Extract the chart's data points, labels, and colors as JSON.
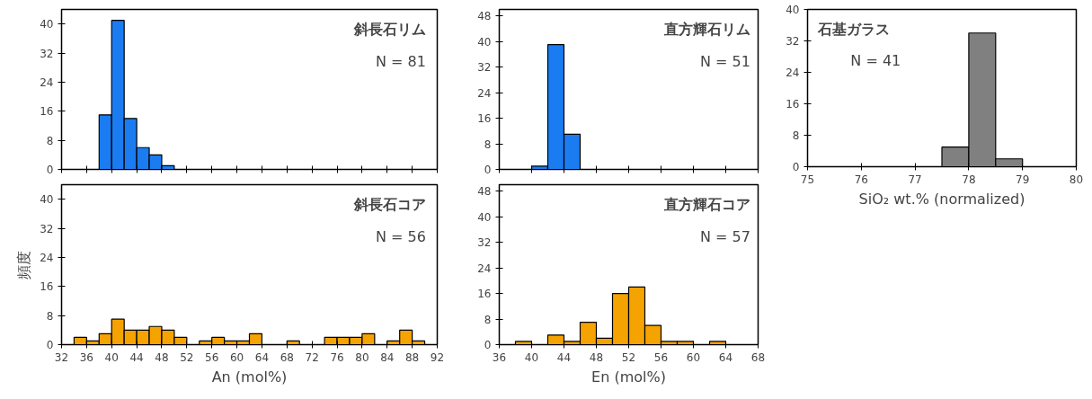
{
  "chart_data": [
    {
      "type": "histogram",
      "title": "斜長石リム",
      "annotations": [
        "N = 81"
      ],
      "bins": [
        38,
        40,
        42,
        44,
        46,
        48,
        50
      ],
      "values": [
        15,
        41,
        14,
        6,
        4,
        1
      ],
      "color": "#1a7cf0",
      "xlim": [
        32,
        92
      ],
      "ylim": [
        0,
        44
      ],
      "xticks": [
        32,
        36,
        40,
        44,
        48,
        52,
        56,
        60,
        64,
        68,
        72,
        76,
        80,
        84,
        88,
        92
      ],
      "yticks": [
        0,
        8,
        16,
        24,
        32,
        40
      ],
      "tick_labels": "y"
    },
    {
      "type": "histogram",
      "title": "直方輝石リム",
      "annotations": [
        "N = 51"
      ],
      "bins": [
        40,
        42,
        44,
        46
      ],
      "values": [
        1,
        39,
        11
      ],
      "color": "#1a7cf0",
      "xlim": [
        36,
        68
      ],
      "ylim": [
        0,
        50
      ],
      "xticks": [
        36,
        40,
        44,
        48,
        52,
        56,
        60,
        64,
        68
      ],
      "yticks": [
        0,
        8,
        16,
        24,
        32,
        40,
        48
      ],
      "tick_labels": "y"
    },
    {
      "type": "histogram",
      "title": "石基ガラス",
      "annotations": [
        "N = 41"
      ],
      "xlabel": "SiO₂ wt.% (normalized)",
      "bins": [
        77.5,
        78,
        78.5,
        79
      ],
      "values": [
        5,
        34,
        2
      ],
      "color": "#808080",
      "xlim": [
        75,
        80
      ],
      "ylim": [
        0,
        40
      ],
      "xticks": [
        75,
        76,
        77,
        78,
        79,
        80
      ],
      "yticks": [
        0,
        8,
        16,
        24,
        32,
        40
      ]
    },
    {
      "type": "histogram",
      "title": "斜長石コア",
      "annotations": [
        "N = 56"
      ],
      "xlabel": "An (mol%)",
      "ylabel": "頻度",
      "bins": [
        34,
        36,
        38,
        40,
        42,
        44,
        46,
        48,
        50,
        52,
        54,
        56,
        58,
        60,
        62,
        64,
        66,
        68,
        70,
        72,
        74,
        76,
        78,
        80,
        82,
        84,
        86,
        88,
        90
      ],
      "values": [
        2,
        1,
        3,
        7,
        4,
        4,
        5,
        4,
        2,
        0,
        1,
        2,
        1,
        1,
        3,
        0,
        0,
        1,
        0,
        0,
        2,
        2,
        2,
        3,
        0,
        1,
        4,
        1
      ],
      "color": "#f5a300",
      "xlim": [
        32,
        92
      ],
      "ylim": [
        0,
        44
      ],
      "xticks": [
        32,
        36,
        40,
        44,
        48,
        52,
        56,
        60,
        64,
        68,
        72,
        76,
        80,
        84,
        88,
        92
      ],
      "yticks": [
        0,
        8,
        16,
        24,
        32,
        40
      ]
    },
    {
      "type": "histogram",
      "title": "直方輝石コア",
      "annotations": [
        "N = 57"
      ],
      "xlabel": "En (mol%)",
      "bins": [
        38,
        40,
        42,
        44,
        46,
        48,
        50,
        52,
        54,
        56,
        58,
        60,
        62,
        64
      ],
      "values": [
        1,
        0,
        3,
        1,
        7,
        2,
        16,
        18,
        6,
        1,
        1,
        0,
        1
      ],
      "color": "#f5a300",
      "xlim": [
        36,
        68
      ],
      "ylim": [
        0,
        50
      ],
      "xticks": [
        36,
        40,
        44,
        48,
        52,
        56,
        60,
        64,
        68
      ],
      "yticks": [
        0,
        8,
        16,
        24,
        32,
        40,
        48
      ]
    }
  ]
}
